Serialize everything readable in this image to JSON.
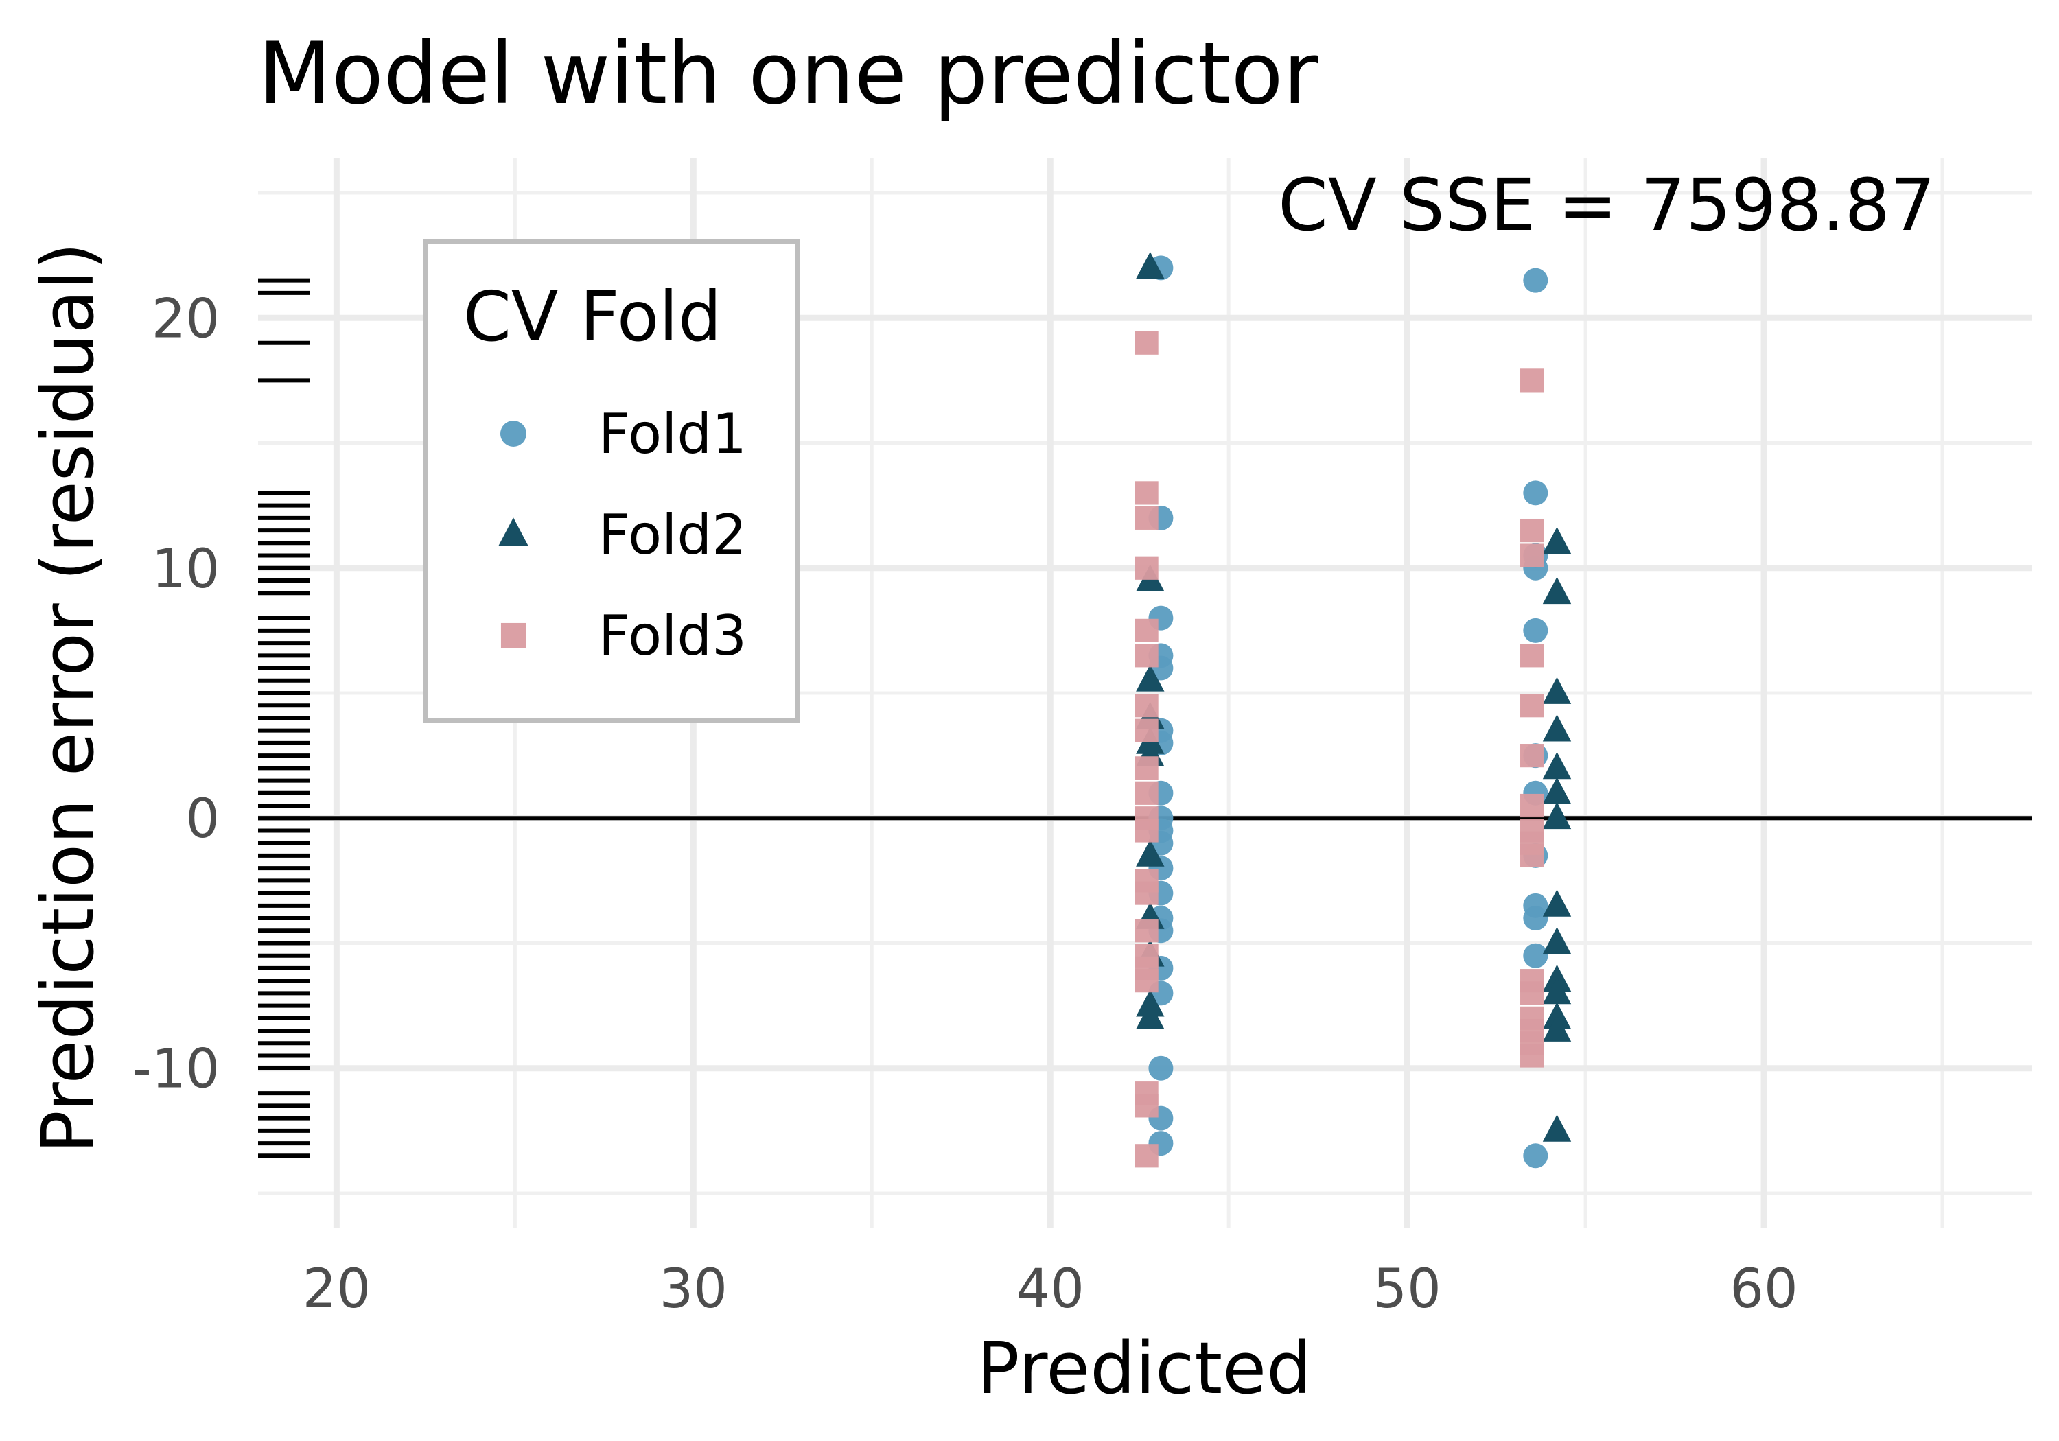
{
  "chart_data": {
    "type": "scatter",
    "title": "Model with one predictor",
    "xlabel": "Predicted",
    "ylabel": "Prediction error (residual)",
    "xlim": [
      17.8,
      67.5
    ],
    "ylim": [
      -16.4,
      26.4
    ],
    "x_ticks": [
      20,
      30,
      40,
      50,
      60
    ],
    "y_ticks": [
      -10,
      0,
      10,
      20
    ],
    "grid": true,
    "reference_line_y": 0,
    "annotation": "CV SSE = 7598.87",
    "legend": {
      "title": "CV Fold",
      "placement": "top-left"
    },
    "series": [
      {
        "name": "Fold1",
        "color": "#5a9cc0",
        "marker": "circle",
        "points": [
          [
            43.1,
            22.0
          ],
          [
            43.1,
            12.0
          ],
          [
            43.1,
            8.0
          ],
          [
            43.1,
            6.5
          ],
          [
            43.1,
            6.0
          ],
          [
            43.1,
            3.5
          ],
          [
            43.1,
            3.0
          ],
          [
            43.1,
            1.0
          ],
          [
            43.1,
            0.0
          ],
          [
            43.1,
            -0.5
          ],
          [
            43.1,
            -1.0
          ],
          [
            43.1,
            -2.0
          ],
          [
            43.1,
            -3.0
          ],
          [
            43.1,
            -4.0
          ],
          [
            43.1,
            -4.5
          ],
          [
            43.1,
            -6.0
          ],
          [
            43.1,
            -7.0
          ],
          [
            43.1,
            -10.0
          ],
          [
            43.1,
            -12.0
          ],
          [
            43.1,
            -13.0
          ],
          [
            53.6,
            21.5
          ],
          [
            53.6,
            13.0
          ],
          [
            53.6,
            10.5
          ],
          [
            53.6,
            10.0
          ],
          [
            53.6,
            7.5
          ],
          [
            53.6,
            2.5
          ],
          [
            53.6,
            1.0
          ],
          [
            53.6,
            -1.5
          ],
          [
            53.6,
            -3.5
          ],
          [
            53.6,
            -4.0
          ],
          [
            53.6,
            -5.5
          ],
          [
            53.6,
            -13.5
          ]
        ]
      },
      {
        "name": "Fold2",
        "color": "#174f63",
        "marker": "triangle",
        "points": [
          [
            42.8,
            22.0
          ],
          [
            42.8,
            9.5
          ],
          [
            42.8,
            5.5
          ],
          [
            42.8,
            4.0
          ],
          [
            42.8,
            3.0
          ],
          [
            42.8,
            2.5
          ],
          [
            42.8,
            -1.5
          ],
          [
            42.8,
            -4.0
          ],
          [
            42.8,
            -5.5
          ],
          [
            42.8,
            -7.5
          ],
          [
            42.8,
            -8.0
          ],
          [
            54.2,
            11.0
          ],
          [
            54.2,
            9.0
          ],
          [
            54.2,
            5.0
          ],
          [
            54.2,
            3.5
          ],
          [
            54.2,
            2.0
          ],
          [
            54.2,
            1.0
          ],
          [
            54.2,
            0.0
          ],
          [
            54.2,
            -3.5
          ],
          [
            54.2,
            -5.0
          ],
          [
            54.2,
            -6.5
          ],
          [
            54.2,
            -7.0
          ],
          [
            54.2,
            -8.0
          ],
          [
            54.2,
            -8.5
          ],
          [
            54.2,
            -12.5
          ]
        ]
      },
      {
        "name": "Fold3",
        "color": "#d99ba0",
        "marker": "square",
        "points": [
          [
            42.7,
            19.0
          ],
          [
            42.7,
            13.0
          ],
          [
            42.7,
            12.0
          ],
          [
            42.7,
            10.0
          ],
          [
            42.7,
            7.5
          ],
          [
            42.7,
            6.5
          ],
          [
            42.7,
            4.5
          ],
          [
            42.7,
            3.5
          ],
          [
            42.7,
            2.0
          ],
          [
            42.7,
            1.0
          ],
          [
            42.7,
            0.0
          ],
          [
            42.7,
            -0.5
          ],
          [
            42.7,
            -2.5
          ],
          [
            42.7,
            -3.0
          ],
          [
            42.7,
            -4.5
          ],
          [
            42.7,
            -5.5
          ],
          [
            42.7,
            -6.0
          ],
          [
            42.7,
            -6.5
          ],
          [
            42.7,
            -11.0
          ],
          [
            42.7,
            -11.5
          ],
          [
            42.7,
            -13.5
          ],
          [
            53.5,
            17.5
          ],
          [
            53.5,
            11.5
          ],
          [
            53.5,
            10.5
          ],
          [
            53.5,
            6.5
          ],
          [
            53.5,
            4.5
          ],
          [
            53.5,
            2.5
          ],
          [
            53.5,
            0.5
          ],
          [
            53.5,
            -0.5
          ],
          [
            53.5,
            -1.0
          ],
          [
            53.5,
            -1.5
          ],
          [
            53.5,
            -6.5
          ],
          [
            53.5,
            -7.0
          ],
          [
            53.5,
            -8.0
          ],
          [
            53.5,
            -8.5
          ],
          [
            53.5,
            -9.0
          ],
          [
            53.5,
            -9.5
          ]
        ]
      }
    ],
    "rug_y": [
      21.5,
      21.0,
      19.0,
      17.5,
      13.0,
      12.5,
      12.0,
      11.5,
      11.0,
      10.5,
      10.0,
      9.5,
      9.0,
      8.0,
      7.5,
      7.0,
      6.5,
      6.0,
      5.5,
      5.0,
      4.5,
      4.0,
      3.5,
      3.0,
      2.5,
      2.0,
      1.5,
      1.0,
      0.5,
      0.0,
      -0.5,
      -1.0,
      -1.5,
      -2.0,
      -2.5,
      -3.0,
      -3.5,
      -4.0,
      -4.5,
      -5.0,
      -5.5,
      -6.0,
      -6.5,
      -7.0,
      -7.5,
      -8.0,
      -8.5,
      -9.0,
      -9.5,
      -10.0,
      -11.0,
      -11.5,
      -12.0,
      -12.5,
      -13.0,
      -13.5
    ]
  }
}
